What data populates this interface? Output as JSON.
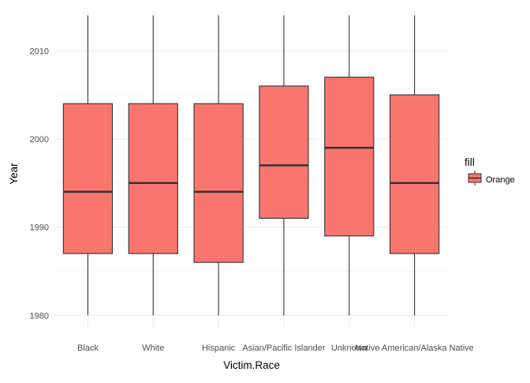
{
  "chart_data": {
    "type": "boxplot",
    "title": "",
    "xlabel": "Victim.Race",
    "ylabel": "Year",
    "ylim": [
      1978.5,
      2014.5
    ],
    "yticks": [
      1980,
      1990,
      2000,
      2010
    ],
    "grid": true,
    "legend": {
      "title": "fill",
      "position": "right",
      "entries": [
        {
          "label": "Orange",
          "color": "#F8766D"
        }
      ]
    },
    "fill_color": "#F8766D",
    "categories": [
      "Black",
      "White",
      "Hispanic",
      "Asian/Pacific Islander",
      "Unknown",
      "Native American/Alaska Native"
    ],
    "series": [
      {
        "boxes": [
          {
            "category": "Black",
            "min": 1980,
            "q1": 1987,
            "median": 1994,
            "q3": 2004,
            "max": 2014
          },
          {
            "category": "White",
            "min": 1980,
            "q1": 1987,
            "median": 1995,
            "q3": 2004,
            "max": 2014
          },
          {
            "category": "Hispanic",
            "min": 1980,
            "q1": 1986,
            "median": 1994,
            "q3": 2004,
            "max": 2014
          },
          {
            "category": "Asian/Pacific Islander",
            "min": 1980,
            "q1": 1991,
            "median": 1997,
            "q3": 2006,
            "max": 2014
          },
          {
            "category": "Unknown",
            "min": 1980,
            "q1": 1989,
            "median": 1999,
            "q3": 2007,
            "max": 2014
          },
          {
            "category": "Native American/Alaska Native",
            "min": 1980,
            "q1": 1987,
            "median": 1995,
            "q3": 2005,
            "max": 2014
          }
        ]
      }
    ]
  }
}
